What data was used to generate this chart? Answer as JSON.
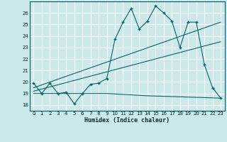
{
  "xlabel": "Humidex (Indice chaleur)",
  "ylabel": "",
  "xlim": [
    -0.5,
    23.5
  ],
  "ylim": [
    17.5,
    27.0
  ],
  "yticks": [
    18,
    19,
    20,
    21,
    22,
    23,
    24,
    25,
    26
  ],
  "xticks": [
    0,
    1,
    2,
    3,
    4,
    5,
    6,
    7,
    8,
    9,
    10,
    11,
    12,
    13,
    14,
    15,
    16,
    17,
    18,
    19,
    20,
    21,
    22,
    23
  ],
  "bg_color": "#cce8e8",
  "grid_color": "#b0d4d4",
  "line_color": "#006868",
  "line1_x": [
    0,
    1,
    2,
    3,
    4,
    5,
    6,
    7,
    8,
    9,
    10,
    11,
    12,
    13,
    14,
    15,
    16,
    17,
    18,
    19,
    20,
    21,
    22,
    23
  ],
  "line1_y": [
    19.9,
    19.0,
    19.9,
    19.0,
    19.1,
    18.1,
    19.0,
    19.8,
    19.9,
    20.3,
    23.7,
    25.2,
    26.4,
    24.6,
    25.3,
    26.6,
    26.0,
    25.3,
    23.0,
    25.2,
    25.2,
    21.5,
    19.5,
    18.6
  ],
  "line2_x": [
    0,
    23
  ],
  "line2_y": [
    19.5,
    25.2
  ],
  "line3_x": [
    0,
    23
  ],
  "line3_y": [
    19.2,
    23.5
  ],
  "line4_x": [
    0,
    9,
    14,
    23
  ],
  "line4_y": [
    19.0,
    19.0,
    18.8,
    18.6
  ]
}
